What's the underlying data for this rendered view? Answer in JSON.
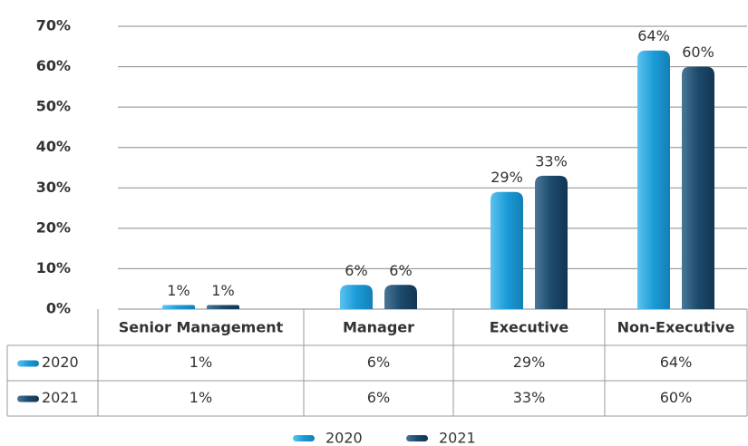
{
  "chart_data": {
    "type": "bar",
    "categories": [
      "Senior Management",
      "Manager",
      "Executive",
      "Non-Executive"
    ],
    "series": [
      {
        "name": "2020",
        "color": "#1b9bd7",
        "values": [
          1,
          6,
          29,
          64
        ],
        "value_labels": [
          "1%",
          "6%",
          "29%",
          "64%"
        ]
      },
      {
        "name": "2021",
        "color": "#1c4a6c",
        "values": [
          1,
          6,
          33,
          60
        ],
        "value_labels": [
          "1%",
          "6%",
          "33%",
          "60%"
        ]
      }
    ],
    "ylim": [
      0,
      70
    ],
    "yticks": [
      {
        "value": 0,
        "label": "0%"
      },
      {
        "value": 10,
        "label": "10%"
      },
      {
        "value": 20,
        "label": "20%"
      },
      {
        "value": 30,
        "label": "30%"
      },
      {
        "value": 40,
        "label": "40%"
      },
      {
        "value": 50,
        "label": "50%"
      },
      {
        "value": 60,
        "label": "60%"
      },
      {
        "value": 70,
        "label": "70%"
      }
    ],
    "grid": true,
    "legend": "bottom"
  }
}
